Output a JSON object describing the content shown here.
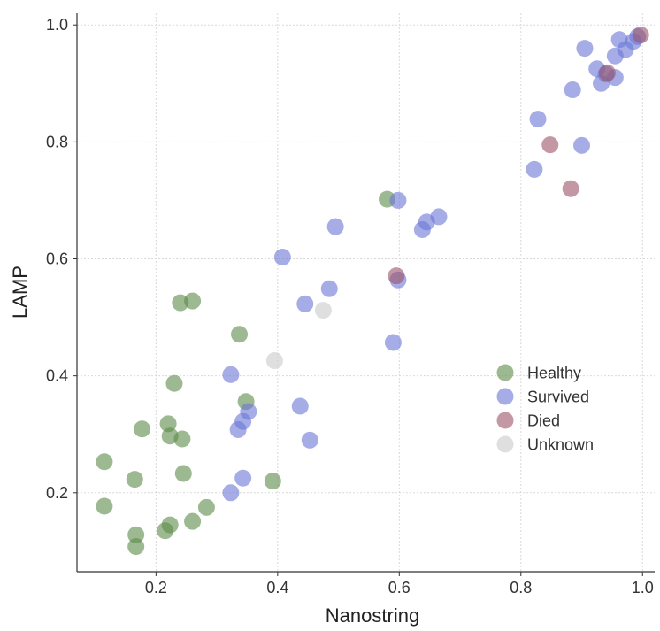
{
  "chart_data": {
    "type": "scatter",
    "xlabel": "Nanostring",
    "ylabel": "LAMP",
    "xlim": [
      0.07,
      1.02
    ],
    "ylim": [
      0.065,
      1.02
    ],
    "xticks": [
      0.2,
      0.4,
      0.6,
      0.8,
      1.0
    ],
    "yticks": [
      0.2,
      0.4,
      0.6,
      0.8,
      1.0
    ],
    "xtick_labels": [
      "0.2",
      "0.4",
      "0.6",
      "0.8",
      "1.0"
    ],
    "ytick_labels": [
      "0.2",
      "0.4",
      "0.6",
      "0.8",
      "1.0"
    ],
    "grid": true,
    "legend_position": "center-right",
    "series": [
      {
        "name": "Healthy",
        "color": "#5b8a4a",
        "points": [
          [
            0.115,
            0.253
          ],
          [
            0.115,
            0.177
          ],
          [
            0.165,
            0.223
          ],
          [
            0.167,
            0.128
          ],
          [
            0.167,
            0.108
          ],
          [
            0.177,
            0.309
          ],
          [
            0.215,
            0.135
          ],
          [
            0.22,
            0.318
          ],
          [
            0.223,
            0.145
          ],
          [
            0.223,
            0.297
          ],
          [
            0.23,
            0.387
          ],
          [
            0.24,
            0.525
          ],
          [
            0.243,
            0.292
          ],
          [
            0.245,
            0.233
          ],
          [
            0.26,
            0.528
          ],
          [
            0.26,
            0.151
          ],
          [
            0.283,
            0.175
          ],
          [
            0.337,
            0.471
          ],
          [
            0.348,
            0.356
          ],
          [
            0.392,
            0.22
          ],
          [
            0.58,
            0.702
          ]
        ]
      },
      {
        "name": "Survived",
        "color": "#6b77d6",
        "points": [
          [
            0.323,
            0.402
          ],
          [
            0.323,
            0.2
          ],
          [
            0.335,
            0.308
          ],
          [
            0.343,
            0.225
          ],
          [
            0.343,
            0.322
          ],
          [
            0.352,
            0.339
          ],
          [
            0.408,
            0.603
          ],
          [
            0.437,
            0.348
          ],
          [
            0.445,
            0.523
          ],
          [
            0.453,
            0.29
          ],
          [
            0.485,
            0.549
          ],
          [
            0.495,
            0.655
          ],
          [
            0.59,
            0.457
          ],
          [
            0.598,
            0.7
          ],
          [
            0.598,
            0.564
          ],
          [
            0.638,
            0.65
          ],
          [
            0.645,
            0.663
          ],
          [
            0.665,
            0.672
          ],
          [
            0.822,
            0.753
          ],
          [
            0.828,
            0.839
          ],
          [
            0.885,
            0.889
          ],
          [
            0.9,
            0.794
          ],
          [
            0.905,
            0.96
          ],
          [
            0.925,
            0.925
          ],
          [
            0.932,
            0.9
          ],
          [
            0.94,
            0.916
          ],
          [
            0.955,
            0.91
          ],
          [
            0.955,
            0.947
          ],
          [
            0.962,
            0.975
          ],
          [
            0.972,
            0.958
          ],
          [
            0.985,
            0.972
          ],
          [
            0.992,
            0.98
          ]
        ]
      },
      {
        "name": "Died",
        "color": "#9b5468",
        "points": [
          [
            0.595,
            0.571
          ],
          [
            0.848,
            0.795
          ],
          [
            0.882,
            0.72
          ],
          [
            0.942,
            0.918
          ],
          [
            0.997,
            0.983
          ]
        ]
      },
      {
        "name": "Unknown",
        "color": "#c9c9c9",
        "points": [
          [
            0.395,
            0.426
          ],
          [
            0.475,
            0.512
          ]
        ]
      }
    ]
  }
}
